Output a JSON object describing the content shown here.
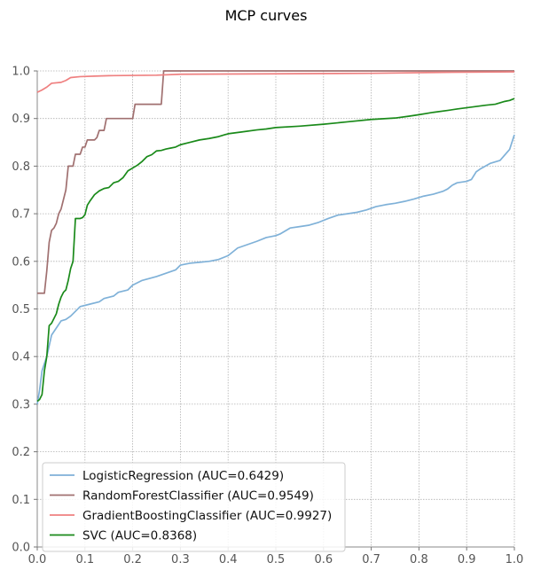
{
  "chart_data": {
    "type": "line",
    "title": "MCP curves",
    "xlabel": "",
    "ylabel": "",
    "xlim": [
      0.0,
      1.0
    ],
    "ylim": [
      0.0,
      1.0
    ],
    "x_ticks": [
      "0.0",
      "0.1",
      "0.2",
      "0.3",
      "0.4",
      "0.5",
      "0.6",
      "0.7",
      "0.8",
      "0.9",
      "1.0"
    ],
    "y_ticks": [
      "0.0",
      "0.1",
      "0.2",
      "0.3",
      "0.4",
      "0.5",
      "0.6",
      "0.7",
      "0.8",
      "0.9",
      "1.0"
    ],
    "grid": true,
    "legend_position": "lower-left",
    "series": [
      {
        "name": "LogisticRegression (AUC=0.6429)",
        "color": "#7fb1d8",
        "points": [
          [
            0.0,
            0.3
          ],
          [
            0.005,
            0.33
          ],
          [
            0.01,
            0.37
          ],
          [
            0.02,
            0.4
          ],
          [
            0.03,
            0.445
          ],
          [
            0.04,
            0.46
          ],
          [
            0.05,
            0.475
          ],
          [
            0.06,
            0.478
          ],
          [
            0.07,
            0.485
          ],
          [
            0.08,
            0.495
          ],
          [
            0.09,
            0.505
          ],
          [
            0.11,
            0.51
          ],
          [
            0.13,
            0.515
          ],
          [
            0.14,
            0.522
          ],
          [
            0.16,
            0.527
          ],
          [
            0.17,
            0.535
          ],
          [
            0.19,
            0.54
          ],
          [
            0.2,
            0.55
          ],
          [
            0.22,
            0.56
          ],
          [
            0.25,
            0.568
          ],
          [
            0.27,
            0.575
          ],
          [
            0.29,
            0.582
          ],
          [
            0.3,
            0.592
          ],
          [
            0.32,
            0.596
          ],
          [
            0.34,
            0.598
          ],
          [
            0.36,
            0.6
          ],
          [
            0.38,
            0.604
          ],
          [
            0.4,
            0.612
          ],
          [
            0.42,
            0.628
          ],
          [
            0.44,
            0.635
          ],
          [
            0.46,
            0.642
          ],
          [
            0.48,
            0.65
          ],
          [
            0.5,
            0.654
          ],
          [
            0.51,
            0.658
          ],
          [
            0.53,
            0.67
          ],
          [
            0.55,
            0.673
          ],
          [
            0.57,
            0.676
          ],
          [
            0.59,
            0.682
          ],
          [
            0.61,
            0.69
          ],
          [
            0.63,
            0.697
          ],
          [
            0.65,
            0.7
          ],
          [
            0.67,
            0.703
          ],
          [
            0.69,
            0.708
          ],
          [
            0.71,
            0.715
          ],
          [
            0.73,
            0.719
          ],
          [
            0.75,
            0.722
          ],
          [
            0.77,
            0.726
          ],
          [
            0.79,
            0.731
          ],
          [
            0.81,
            0.737
          ],
          [
            0.83,
            0.741
          ],
          [
            0.85,
            0.747
          ],
          [
            0.86,
            0.752
          ],
          [
            0.87,
            0.76
          ],
          [
            0.88,
            0.765
          ],
          [
            0.9,
            0.768
          ],
          [
            0.91,
            0.772
          ],
          [
            0.92,
            0.788
          ],
          [
            0.93,
            0.795
          ],
          [
            0.95,
            0.806
          ],
          [
            0.97,
            0.812
          ],
          [
            0.99,
            0.835
          ],
          [
            1.0,
            0.866
          ]
        ]
      },
      {
        "name": "RandomForestClassifier (AUC=0.9549)",
        "color": "#a07070",
        "points": [
          [
            0.0,
            0.533
          ],
          [
            0.015,
            0.533
          ],
          [
            0.02,
            0.58
          ],
          [
            0.025,
            0.64
          ],
          [
            0.03,
            0.665
          ],
          [
            0.035,
            0.67
          ],
          [
            0.04,
            0.68
          ],
          [
            0.045,
            0.7
          ],
          [
            0.05,
            0.71
          ],
          [
            0.055,
            0.73
          ],
          [
            0.06,
            0.75
          ],
          [
            0.065,
            0.8
          ],
          [
            0.075,
            0.8
          ],
          [
            0.08,
            0.825
          ],
          [
            0.09,
            0.825
          ],
          [
            0.095,
            0.84
          ],
          [
            0.1,
            0.84
          ],
          [
            0.105,
            0.855
          ],
          [
            0.12,
            0.855
          ],
          [
            0.125,
            0.86
          ],
          [
            0.13,
            0.875
          ],
          [
            0.14,
            0.875
          ],
          [
            0.145,
            0.9
          ],
          [
            0.2,
            0.9
          ],
          [
            0.205,
            0.93
          ],
          [
            0.26,
            0.93
          ],
          [
            0.265,
            1.0
          ],
          [
            1.0,
            1.0
          ]
        ]
      },
      {
        "name": "GradientBoostingClassifier (AUC=0.9927)",
        "color": "#ef8080",
        "points": [
          [
            0.0,
            0.955
          ],
          [
            0.01,
            0.96
          ],
          [
            0.02,
            0.966
          ],
          [
            0.03,
            0.974
          ],
          [
            0.05,
            0.976
          ],
          [
            0.06,
            0.98
          ],
          [
            0.07,
            0.986
          ],
          [
            0.09,
            0.988
          ],
          [
            0.12,
            0.989
          ],
          [
            0.15,
            0.99
          ],
          [
            0.25,
            0.991
          ],
          [
            0.3,
            0.993
          ],
          [
            0.5,
            0.994
          ],
          [
            0.7,
            0.995
          ],
          [
            0.85,
            0.997
          ],
          [
            1.0,
            0.998
          ]
        ]
      },
      {
        "name": "SVC (AUC=0.8368)",
        "color": "#1a8a1a",
        "points": [
          [
            0.0,
            0.306
          ],
          [
            0.005,
            0.31
          ],
          [
            0.01,
            0.32
          ],
          [
            0.015,
            0.37
          ],
          [
            0.02,
            0.4
          ],
          [
            0.025,
            0.465
          ],
          [
            0.03,
            0.47
          ],
          [
            0.035,
            0.48
          ],
          [
            0.04,
            0.49
          ],
          [
            0.045,
            0.51
          ],
          [
            0.05,
            0.525
          ],
          [
            0.055,
            0.535
          ],
          [
            0.06,
            0.54
          ],
          [
            0.065,
            0.56
          ],
          [
            0.07,
            0.585
          ],
          [
            0.075,
            0.6
          ],
          [
            0.08,
            0.69
          ],
          [
            0.09,
            0.69
          ],
          [
            0.095,
            0.692
          ],
          [
            0.1,
            0.698
          ],
          [
            0.105,
            0.718
          ],
          [
            0.11,
            0.726
          ],
          [
            0.12,
            0.74
          ],
          [
            0.13,
            0.748
          ],
          [
            0.14,
            0.753
          ],
          [
            0.15,
            0.755
          ],
          [
            0.16,
            0.765
          ],
          [
            0.17,
            0.768
          ],
          [
            0.18,
            0.776
          ],
          [
            0.19,
            0.79
          ],
          [
            0.2,
            0.796
          ],
          [
            0.21,
            0.802
          ],
          [
            0.22,
            0.81
          ],
          [
            0.23,
            0.82
          ],
          [
            0.24,
            0.824
          ],
          [
            0.25,
            0.832
          ],
          [
            0.26,
            0.833
          ],
          [
            0.27,
            0.836
          ],
          [
            0.28,
            0.838
          ],
          [
            0.29,
            0.84
          ],
          [
            0.3,
            0.845
          ],
          [
            0.32,
            0.85
          ],
          [
            0.34,
            0.855
          ],
          [
            0.36,
            0.858
          ],
          [
            0.38,
            0.862
          ],
          [
            0.4,
            0.868
          ],
          [
            0.43,
            0.872
          ],
          [
            0.46,
            0.876
          ],
          [
            0.48,
            0.878
          ],
          [
            0.5,
            0.881
          ],
          [
            0.55,
            0.884
          ],
          [
            0.6,
            0.888
          ],
          [
            0.65,
            0.893
          ],
          [
            0.7,
            0.898
          ],
          [
            0.75,
            0.901
          ],
          [
            0.78,
            0.905
          ],
          [
            0.8,
            0.908
          ],
          [
            0.83,
            0.913
          ],
          [
            0.86,
            0.917
          ],
          [
            0.88,
            0.92
          ],
          [
            0.91,
            0.924
          ],
          [
            0.94,
            0.928
          ],
          [
            0.96,
            0.93
          ],
          [
            0.98,
            0.936
          ],
          [
            0.99,
            0.938
          ],
          [
            1.0,
            0.942
          ]
        ]
      }
    ]
  }
}
